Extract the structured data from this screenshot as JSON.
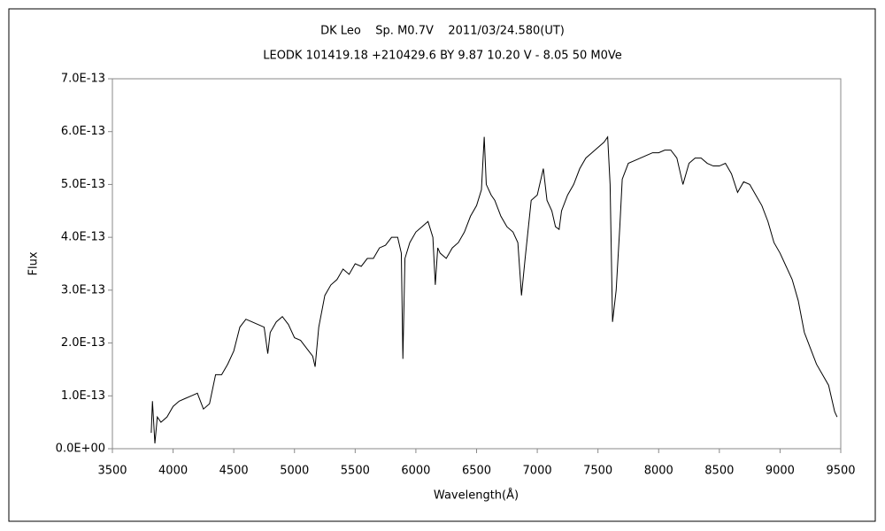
{
  "chart_data": {
    "type": "line",
    "title": "DK Leo    Sp. M0.7V    2011/03/24.580(UT)",
    "subtitle": "LEODK 101419.18 +210429.6 BY 9.87 10.20 V - 8.05 50 M0Ve",
    "x_label": "Wavelength(Å)",
    "y_label": "Flux",
    "xlim": [
      3500,
      9500
    ],
    "xticks": [
      3500,
      4000,
      4500,
      5000,
      5500,
      6000,
      6500,
      7000,
      7500,
      8000,
      8500,
      9000,
      9500
    ],
    "ylim": [
      0,
      7e-13
    ],
    "yticks": [
      {
        "value": 0,
        "label": "0.0E+00"
      },
      {
        "value": 1e-13,
        "label": "1.0E-13"
      },
      {
        "value": 2e-13,
        "label": "2.0E-13"
      },
      {
        "value": 3e-13,
        "label": "3.0E-13"
      },
      {
        "value": 4e-13,
        "label": "4.0E-13"
      },
      {
        "value": 5e-13,
        "label": "5.0E-13"
      },
      {
        "value": 6e-13,
        "label": "6.0E-13"
      },
      {
        "value": 7e-13,
        "label": "7.0E-13"
      }
    ],
    "grid": false,
    "color": "#000000",
    "x": [
      3820,
      3830,
      3850,
      3870,
      3900,
      3950,
      4000,
      4050,
      4100,
      4150,
      4200,
      4250,
      4300,
      4350,
      4400,
      4450,
      4500,
      4550,
      4600,
      4650,
      4700,
      4750,
      4780,
      4800,
      4850,
      4900,
      4950,
      5000,
      5050,
      5100,
      5150,
      5170,
      5200,
      5250,
      5300,
      5350,
      5400,
      5450,
      5500,
      5550,
      5600,
      5650,
      5700,
      5750,
      5800,
      5850,
      5880,
      5893,
      5910,
      5950,
      6000,
      6050,
      6100,
      6140,
      6160,
      6180,
      6200,
      6250,
      6300,
      6350,
      6400,
      6450,
      6500,
      6540,
      6563,
      6580,
      6620,
      6650,
      6700,
      6750,
      6800,
      6840,
      6870,
      6900,
      6950,
      7000,
      7050,
      7080,
      7120,
      7150,
      7180,
      7200,
      7250,
      7300,
      7350,
      7400,
      7450,
      7500,
      7550,
      7580,
      7600,
      7620,
      7650,
      7680,
      7700,
      7750,
      7800,
      7850,
      7900,
      7950,
      8000,
      8050,
      8100,
      8150,
      8200,
      8250,
      8300,
      8350,
      8400,
      8450,
      8500,
      8550,
      8600,
      8650,
      8700,
      8750,
      8800,
      8850,
      8900,
      8950,
      9000,
      9050,
      9100,
      9150,
      9200,
      9250,
      9300,
      9350,
      9400,
      9450,
      9470
    ],
    "values": [
      3e-14,
      9e-14,
      1e-14,
      6e-14,
      5e-14,
      6e-14,
      8e-14,
      9e-14,
      9.5e-14,
      1e-13,
      1.05e-13,
      7.5e-14,
      8.5e-14,
      1.4e-13,
      1.4e-13,
      1.6e-13,
      1.85e-13,
      2.3e-13,
      2.45e-13,
      2.4e-13,
      2.35e-13,
      2.3e-13,
      1.8e-13,
      2.2e-13,
      2.4e-13,
      2.5e-13,
      2.35e-13,
      2.1e-13,
      2.05e-13,
      1.9e-13,
      1.75e-13,
      1.55e-13,
      2.3e-13,
      2.9e-13,
      3.1e-13,
      3.2e-13,
      3.4e-13,
      3.3e-13,
      3.5e-13,
      3.45e-13,
      3.6e-13,
      3.6e-13,
      3.8e-13,
      3.85e-13,
      4e-13,
      4e-13,
      3.7e-13,
      1.7e-13,
      3.6e-13,
      3.9e-13,
      4.1e-13,
      4.2e-13,
      4.3e-13,
      4e-13,
      3.1e-13,
      3.8e-13,
      3.7e-13,
      3.6e-13,
      3.8e-13,
      3.9e-13,
      4.1e-13,
      4.4e-13,
      4.6e-13,
      4.9e-13,
      5.9e-13,
      5e-13,
      4.8e-13,
      4.7e-13,
      4.4e-13,
      4.2e-13,
      4.1e-13,
      3.9e-13,
      2.9e-13,
      3.6e-13,
      4.7e-13,
      4.8e-13,
      5.3e-13,
      4.7e-13,
      4.5e-13,
      4.2e-13,
      4.15e-13,
      4.5e-13,
      4.8e-13,
      5e-13,
      5.3e-13,
      5.5e-13,
      5.6e-13,
      5.7e-13,
      5.8e-13,
      5.9e-13,
      5e-13,
      2.4e-13,
      3e-13,
      4.2e-13,
      5.1e-13,
      5.4e-13,
      5.45e-13,
      5.5e-13,
      5.55e-13,
      5.6e-13,
      5.6e-13,
      5.65e-13,
      5.65e-13,
      5.5e-13,
      5e-13,
      5.4e-13,
      5.5e-13,
      5.5e-13,
      5.4e-13,
      5.35e-13,
      5.35e-13,
      5.4e-13,
      5.2e-13,
      4.85e-13,
      5.05e-13,
      5e-13,
      4.8e-13,
      4.6e-13,
      4.3e-13,
      3.9e-13,
      3.7e-13,
      3.45e-13,
      3.2e-13,
      2.8e-13,
      2.2e-13,
      1.9e-13,
      1.6e-13,
      1.4e-13,
      1.2e-13,
      7e-14,
      6e-14
    ]
  }
}
